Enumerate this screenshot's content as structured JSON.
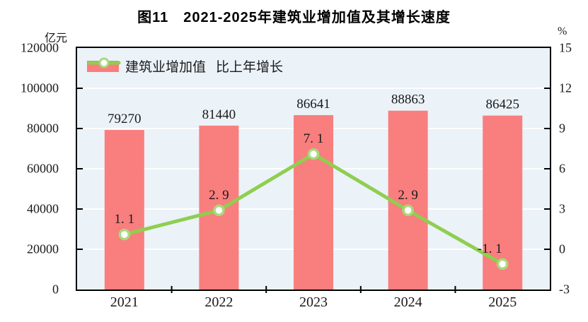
{
  "title": "图11　2021-2025年建筑业增加值及其增长速度",
  "legend": {
    "items": [
      {
        "label": "建筑业增加值"
      },
      {
        "label": "比上年增长"
      }
    ]
  },
  "axis_left_unit": "亿元",
  "axis_right_unit": "%",
  "chart_data": {
    "type": "bar",
    "subtype": "bar+line-dual-axis",
    "title": "图11　2021-2025年建筑业增加值及其增长速度",
    "categories": [
      "2021",
      "2022",
      "2023",
      "2024",
      "2025"
    ],
    "series": [
      {
        "name": "建筑业增加值",
        "type": "bar",
        "axis": "left",
        "unit": "亿元",
        "values": [
          79270,
          81440,
          86641,
          88863,
          86425
        ],
        "labels": [
          "79270",
          "81440",
          "86641",
          "88863",
          "86425"
        ],
        "color": "#F97E7E"
      },
      {
        "name": "比上年增长",
        "type": "line",
        "axis": "right",
        "unit": "%",
        "values": [
          1.1,
          2.9,
          7.1,
          2.9,
          -1.1
        ],
        "labels": [
          "1. 1",
          "2. 9",
          "7. 1",
          "2. 9",
          "-1. 1"
        ],
        "color": "#8FCE50",
        "marker_fill": "#FFFFFF",
        "marker_stroke": "#A9D97C"
      }
    ],
    "axes": {
      "left": {
        "unit": "亿元",
        "min": 0,
        "max": 120000,
        "tick_step": 20000,
        "ticks": [
          "120000",
          "100000",
          "80000",
          "60000",
          "40000",
          "20000",
          "0"
        ]
      },
      "right": {
        "unit": "%",
        "min": -3,
        "max": 15,
        "tick_step": 3,
        "ticks": [
          "15",
          "12",
          "9",
          "6",
          "3",
          "0",
          "-3"
        ]
      }
    },
    "grid": true,
    "grid_color": "#FFFFFF",
    "plot_bg": "#EBF2F8",
    "frame_color": "#000000",
    "text_color": "#1a1a1a",
    "legend_position": "top-left-inside"
  }
}
